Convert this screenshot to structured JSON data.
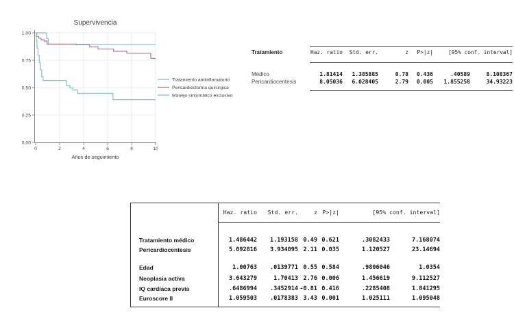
{
  "chart_data": {
    "type": "line",
    "subtype": "kaplan-meier-step",
    "title": "Supervivencia",
    "xlabel": "Años de seguimiento",
    "ylabel": "",
    "xlim": [
      0,
      10
    ],
    "ylim": [
      0,
      1
    ],
    "xticks": [
      "0",
      "2",
      "4",
      "6",
      "8",
      "10"
    ],
    "yticks": [
      "1.00",
      "0.75",
      "0.50",
      "0.25",
      "0.00"
    ],
    "grid": true,
    "legend_position": "right",
    "series": [
      {
        "name": "Tratamiento antiinflamatorio",
        "color": "#82b6d9",
        "step_points": [
          [
            0,
            1.0
          ],
          [
            0.9,
            1.0
          ],
          [
            0.9,
            0.948
          ],
          [
            1.05,
            0.948
          ],
          [
            1.05,
            0.895
          ],
          [
            10,
            0.895
          ]
        ]
      },
      {
        "name": "Pericardiectomía quirúrgica",
        "color": "#b3798c",
        "step_points": [
          [
            0,
            1.0
          ],
          [
            0.07,
            1.0
          ],
          [
            0.07,
            0.966
          ],
          [
            0.25,
            0.966
          ],
          [
            0.25,
            0.951
          ],
          [
            0.45,
            0.951
          ],
          [
            0.45,
            0.937
          ],
          [
            0.7,
            0.937
          ],
          [
            0.7,
            0.925
          ],
          [
            0.95,
            0.925
          ],
          [
            0.95,
            0.898
          ],
          [
            3.4,
            0.898
          ],
          [
            3.4,
            0.891
          ],
          [
            4.5,
            0.891
          ],
          [
            4.5,
            0.872
          ],
          [
            5.2,
            0.872
          ],
          [
            5.2,
            0.852
          ],
          [
            6.5,
            0.852
          ],
          [
            6.5,
            0.832
          ],
          [
            7.6,
            0.832
          ],
          [
            7.6,
            0.814
          ],
          [
            9.6,
            0.814
          ],
          [
            9.6,
            0.768
          ],
          [
            10,
            0.765
          ]
        ]
      },
      {
        "name": "Manejo sintomático exclusivo",
        "color": "#7ac8af",
        "step_points": [
          [
            0,
            1.0
          ],
          [
            0.05,
            1.0
          ],
          [
            0.05,
            0.93
          ],
          [
            0.12,
            0.93
          ],
          [
            0.12,
            0.862
          ],
          [
            0.2,
            0.862
          ],
          [
            0.2,
            0.795
          ],
          [
            0.3,
            0.795
          ],
          [
            0.3,
            0.73
          ],
          [
            0.4,
            0.73
          ],
          [
            0.4,
            0.662
          ],
          [
            0.5,
            0.662
          ],
          [
            0.5,
            0.6
          ],
          [
            0.62,
            0.6
          ],
          [
            0.62,
            0.565
          ],
          [
            2.55,
            0.565
          ],
          [
            2.55,
            0.52
          ],
          [
            2.85,
            0.52
          ],
          [
            2.85,
            0.498
          ],
          [
            3.1,
            0.498
          ],
          [
            3.1,
            0.478
          ],
          [
            3.5,
            0.478
          ],
          [
            3.5,
            0.448
          ],
          [
            6.45,
            0.448
          ],
          [
            6.45,
            0.39
          ],
          [
            10,
            0.39
          ]
        ]
      }
    ]
  },
  "table_top": {
    "row_header": "Tratamiento",
    "columns": [
      "Haz. ratio",
      "Std. err.",
      "z",
      "P>|z|",
      "[95% conf. interval]"
    ],
    "rows": [
      {
        "label": "Médico",
        "values": [
          "1.81414",
          "1.385885",
          "0.78",
          "0.436",
          ".40589",
          "8.108367"
        ]
      },
      {
        "label": "Pericardiocentesis",
        "values": [
          "8.05036",
          "6.028405",
          "2.79",
          "0.005",
          "1.855258",
          "34.93223"
        ]
      }
    ]
  },
  "table_bottom": {
    "columns": [
      "Haz. ratio",
      "Std. err.",
      "z",
      "P>|z|",
      "[95% conf. interval]"
    ],
    "rows": [
      {
        "label": "Tratamiento médico",
        "values": [
          "1.486442",
          "1.193158",
          "0.49",
          "0.621",
          ".3082433",
          "7.168074"
        ]
      },
      {
        "label": "Pericardiocentesis",
        "values": [
          "5.092816",
          "3.934095",
          "2.11",
          "0.035",
          "1.120527",
          "23.14694"
        ]
      },
      {
        "label": "Edad",
        "values": [
          "1.00763",
          ".0139771",
          "0.55",
          "0.584",
          ".9806046",
          "1.0354"
        ]
      },
      {
        "label": "Neoplasia activa",
        "values": [
          "3.643279",
          "1.70413",
          "2.76",
          "0.006",
          "1.456619",
          "9.112527"
        ]
      },
      {
        "label": "IQ cardíaca previa",
        "values": [
          ".6486994",
          ".3452914",
          "-0.81",
          "0.416",
          ".2285408",
          "1.841295"
        ]
      },
      {
        "label": "Euroscore II",
        "values": [
          "1.059503",
          ".0178383",
          "3.43",
          "0.001",
          "1.025111",
          "1.095048"
        ]
      }
    ]
  }
}
